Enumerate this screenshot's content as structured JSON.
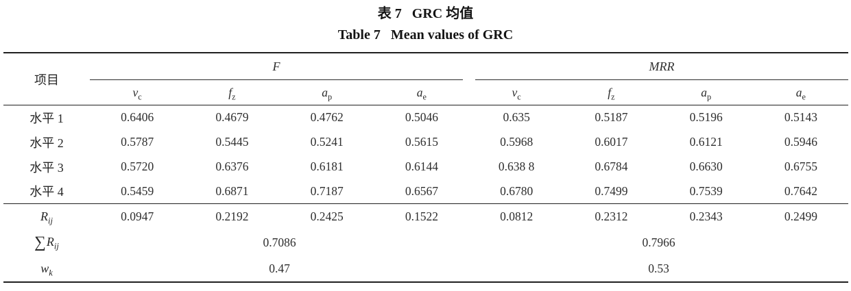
{
  "colors": {
    "background": "#ffffff",
    "text": "#262626",
    "rule": "#1f1f1f"
  },
  "caption": {
    "zh": {
      "label": "表 7",
      "text": "GRC 均值"
    },
    "en": {
      "label": "Table 7",
      "text": "Mean values of GRC"
    }
  },
  "table": {
    "corner_header": "项目",
    "groups": [
      {
        "name": "F"
      },
      {
        "name": "MRR"
      }
    ],
    "sub_columns": [
      {
        "base": "v",
        "sub": "c"
      },
      {
        "base": "f",
        "sub": "z"
      },
      {
        "base": "a",
        "sub": "p"
      },
      {
        "base": "a",
        "sub": "e"
      },
      {
        "base": "v",
        "sub": "c"
      },
      {
        "base": "f",
        "sub": "z"
      },
      {
        "base": "a",
        "sub": "p"
      },
      {
        "base": "a",
        "sub": "e"
      }
    ],
    "rows": [
      {
        "label": "水平 1",
        "values": [
          "0.6406",
          "0.4679",
          "0.4762",
          "0.5046",
          "0.635",
          "0.5187",
          "0.5196",
          "0.5143"
        ]
      },
      {
        "label": "水平 2",
        "values": [
          "0.5787",
          "0.5445",
          "0.5241",
          "0.5615",
          "0.5968",
          "0.6017",
          "0.6121",
          "0.5946"
        ]
      },
      {
        "label": "水平 3",
        "values": [
          "0.5720",
          "0.6376",
          "0.6181",
          "0.6144",
          "0.638 8",
          "0.6784",
          "0.6630",
          "0.6755"
        ]
      },
      {
        "label": "水平 4",
        "values": [
          "0.5459",
          "0.6871",
          "0.7187",
          "0.6567",
          "0.6780",
          "0.7499",
          "0.7539",
          "0.7642"
        ]
      }
    ],
    "range_row": {
      "label_base": "R",
      "label_sub": "ij",
      "values": [
        "0.0947",
        "0.2192",
        "0.2425",
        "0.1522",
        "0.0812",
        "0.2312",
        "0.2343",
        "0.2499"
      ]
    },
    "sum_row": {
      "label_prefix": "∑",
      "label_base": "R",
      "label_sub": "ij",
      "f_value": "0.7086",
      "mrr_value": "0.7966"
    },
    "weight_row": {
      "label_base": "w",
      "label_sub": "k",
      "f_value": "0.47",
      "mrr_value": "0.53"
    }
  }
}
